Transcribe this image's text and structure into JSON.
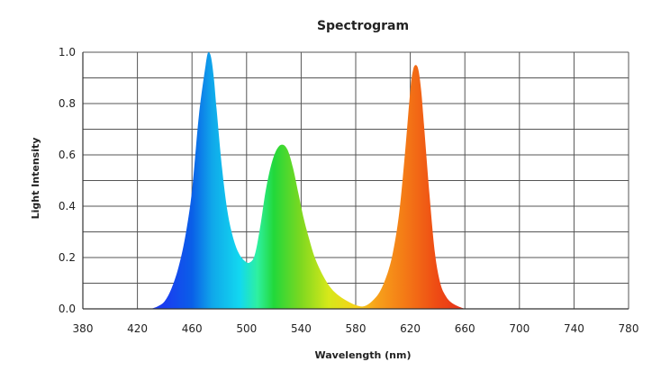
{
  "chart_data": {
    "type": "area",
    "title": "Spectrogram",
    "xlabel": "Wavelength  (nm)",
    "ylabel": "Light Intensity",
    "xlim": [
      380,
      780
    ],
    "ylim": [
      0,
      1.0
    ],
    "x_ticks": [
      380,
      420,
      460,
      500,
      540,
      580,
      620,
      660,
      700,
      740,
      780
    ],
    "x_tick_labels": [
      "380",
      "420",
      "460",
      "500",
      "540",
      "580",
      "620",
      "660",
      "700",
      "740",
      "780"
    ],
    "y_ticks": [
      0,
      0.2,
      0.4,
      0.6,
      0.8,
      1.0
    ],
    "y_tick_labels": [
      "0.0",
      "0.2",
      "0.4",
      "0.6",
      "0.8",
      "1.0"
    ],
    "grid": true,
    "legend": "none",
    "fill": "wavelength-gradient",
    "series": [
      {
        "x": [
          430,
          435,
          440,
          445,
          450,
          455,
          460,
          465,
          470,
          472,
          474,
          476,
          478,
          482,
          486,
          490,
          494,
          498,
          502,
          506,
          510,
          514,
          518,
          522,
          526,
          530,
          534,
          538,
          542,
          546,
          550,
          556,
          562,
          568,
          574,
          580,
          586,
          592,
          598,
          604,
          608,
          612,
          616,
          620,
          622,
          624,
          626,
          628,
          630,
          634,
          638,
          642,
          646,
          650,
          655,
          660
        ],
        "values": [
          0.0,
          0.01,
          0.03,
          0.08,
          0.16,
          0.28,
          0.46,
          0.75,
          0.95,
          1.0,
          0.98,
          0.9,
          0.78,
          0.55,
          0.38,
          0.28,
          0.22,
          0.19,
          0.18,
          0.21,
          0.32,
          0.46,
          0.56,
          0.62,
          0.64,
          0.62,
          0.55,
          0.45,
          0.35,
          0.27,
          0.2,
          0.13,
          0.08,
          0.05,
          0.03,
          0.015,
          0.01,
          0.03,
          0.07,
          0.15,
          0.24,
          0.38,
          0.6,
          0.85,
          0.93,
          0.95,
          0.93,
          0.85,
          0.72,
          0.45,
          0.22,
          0.1,
          0.05,
          0.025,
          0.01,
          0.0
        ]
      }
    ],
    "colors": {
      "stops": [
        {
          "wavelength": 440,
          "color": "#1a3df0"
        },
        {
          "wavelength": 460,
          "color": "#0a5fe8"
        },
        {
          "wavelength": 475,
          "color": "#10a8ea"
        },
        {
          "wavelength": 495,
          "color": "#12d8f0"
        },
        {
          "wavelength": 508,
          "color": "#2ef0a0"
        },
        {
          "wavelength": 520,
          "color": "#22d83a"
        },
        {
          "wavelength": 540,
          "color": "#7ed820"
        },
        {
          "wavelength": 560,
          "color": "#d6e81a"
        },
        {
          "wavelength": 580,
          "color": "#f6d21a"
        },
        {
          "wavelength": 595,
          "color": "#f7a21b"
        },
        {
          "wavelength": 615,
          "color": "#f47c16"
        },
        {
          "wavelength": 640,
          "color": "#ee4a14"
        },
        {
          "wavelength": 660,
          "color": "#e6301a"
        }
      ],
      "grid": "#555555",
      "text": "#222222"
    }
  }
}
